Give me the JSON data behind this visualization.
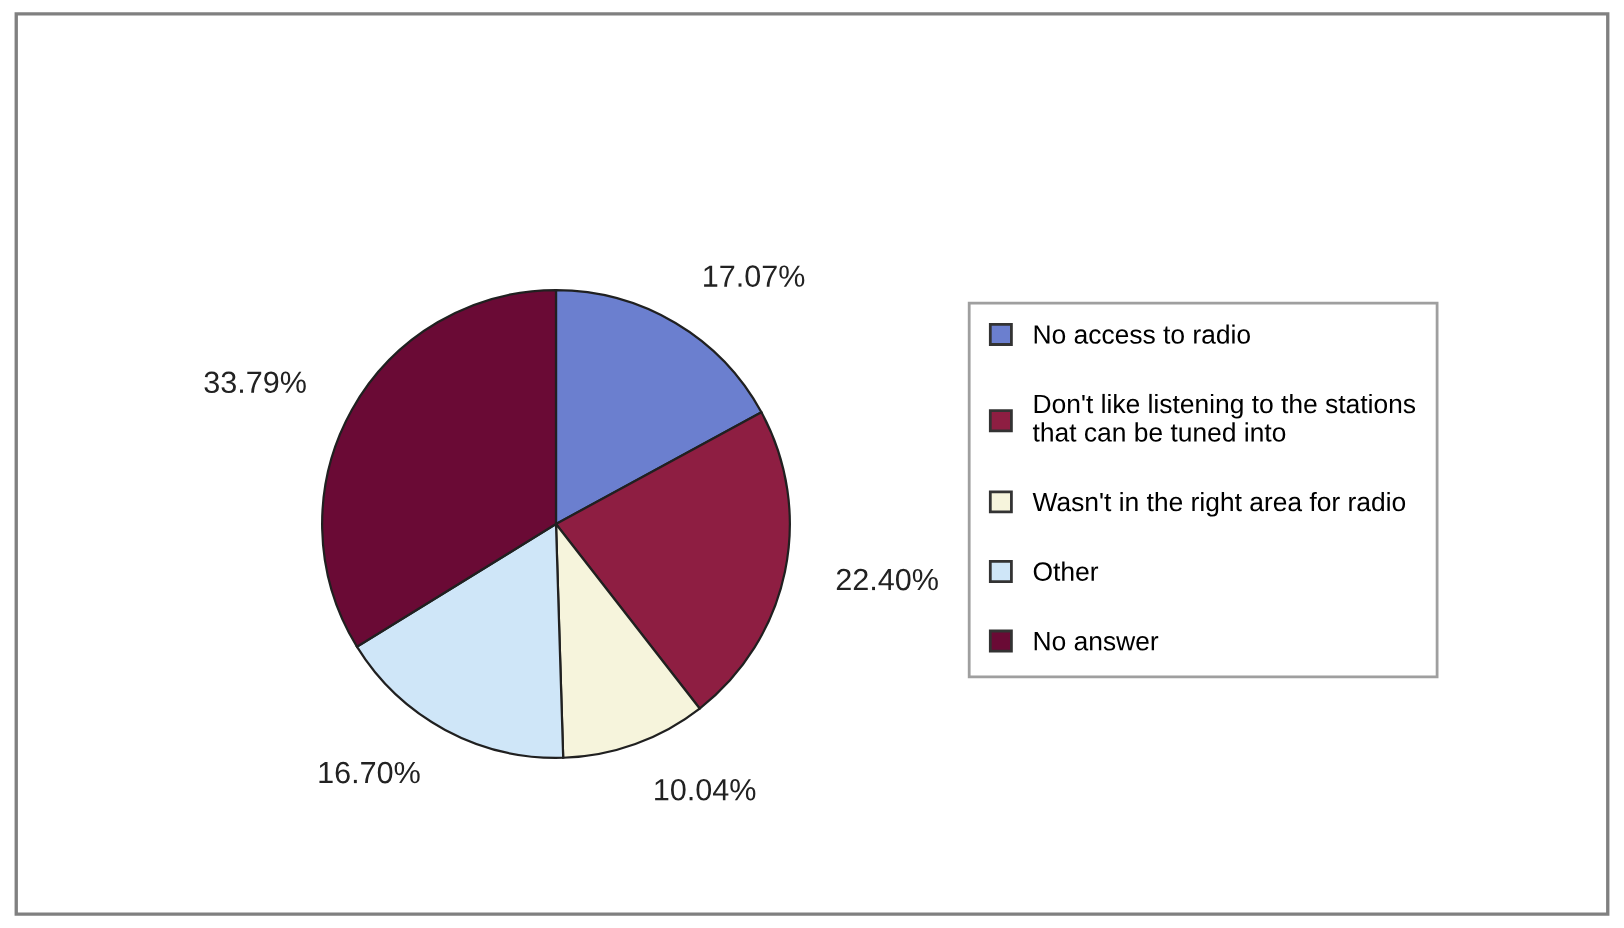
{
  "chart_data": {
    "type": "pie",
    "categories": [
      "No access to radio",
      "Don't like listening to the stations that can be tuned into",
      "Wasn't in the right area for radio",
      "Other",
      "No answer"
    ],
    "values": [
      17.07,
      22.4,
      10.04,
      16.7,
      33.79
    ],
    "value_labels": [
      "17.07%",
      "22.40%",
      "10.04%",
      "16.70%",
      "33.79%"
    ],
    "colors": [
      "#6b7fcf",
      "#8e1e42",
      "#f6f4dc",
      "#cfe6f8",
      "#6a0a35"
    ],
    "legend": "right"
  }
}
